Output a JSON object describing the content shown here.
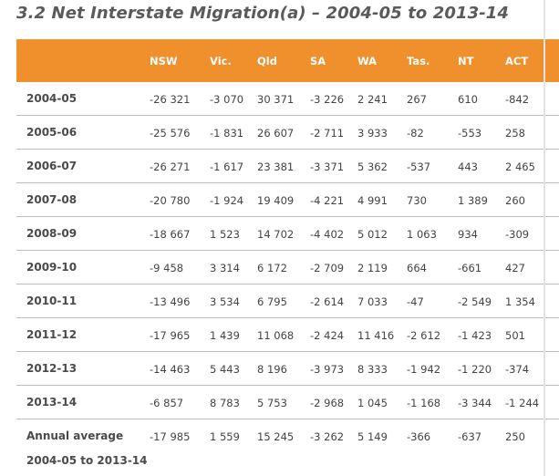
{
  "title": "3.2 Net Interstate Migration(a) – 2004-05 to 2013-14",
  "columns": [
    "NSW",
    "Vic.",
    "Qld",
    "SA",
    "WA",
    "Tas.",
    "NT",
    "ACT"
  ],
  "rows": [
    {
      "label": "2004-05",
      "values": [
        "-26 321",
        "-3 070",
        "30 371",
        "-3 226",
        "2 241",
        "267",
        "610",
        "-842"
      ]
    },
    {
      "label": "2005-06",
      "values": [
        "-25 576",
        "-1 831",
        "26 607",
        "-2 711",
        "3 933",
        "-82",
        "-553",
        "258"
      ]
    },
    {
      "label": "2006-07",
      "values": [
        "-26 271",
        "-1 617",
        "23 381",
        "-3 371",
        "5 362",
        "-537",
        "443",
        "2 465"
      ]
    },
    {
      "label": "2007-08",
      "values": [
        "-20 780",
        "-1 924",
        "19 409",
        "-4 221",
        "4 991",
        "730",
        "1 389",
        "260"
      ]
    },
    {
      "label": "2008-09",
      "values": [
        "-18 667",
        "1 523",
        "14 702",
        "-4 402",
        "5 012",
        "1 063",
        "934",
        "-309"
      ]
    },
    {
      "label": "2009-10",
      "values": [
        "-9 458",
        "3 314",
        "6 172",
        "-2 709",
        "2 119",
        "664",
        "-661",
        "427"
      ]
    },
    {
      "label": "2010-11",
      "values": [
        "-13 496",
        "3 534",
        "6 795",
        "-2 614",
        "7 033",
        "-47",
        "-2 549",
        "1 354"
      ]
    },
    {
      "label": "2011-12",
      "values": [
        "-17 965",
        "1 439",
        "11 068",
        "-2 424",
        "11 416",
        "-2 612",
        "-1 423",
        "501"
      ]
    },
    {
      "label": "2012-13",
      "values": [
        "-14 463",
        "5 443",
        "8 196",
        "-3 973",
        "8 333",
        "-1 942",
        "-1 220",
        "-374"
      ]
    },
    {
      "label": "2013-14",
      "values": [
        "-6 857",
        "8 783",
        "5 753",
        "-2 968",
        "1 045",
        "-1 168",
        "-3 344",
        "-1 244"
      ]
    }
  ],
  "average_row": {
    "label_line1": "Annual average",
    "label_line2": "2004-05 to 2013-14",
    "values": [
      "-17 985",
      "1 559",
      "15 245",
      "-3 262",
      "5 149",
      "-366",
      "-637",
      "250"
    ]
  },
  "colors": {
    "header": "#f0902d",
    "row_divider": "#bdbdbd",
    "title": "#5a5a5a"
  }
}
